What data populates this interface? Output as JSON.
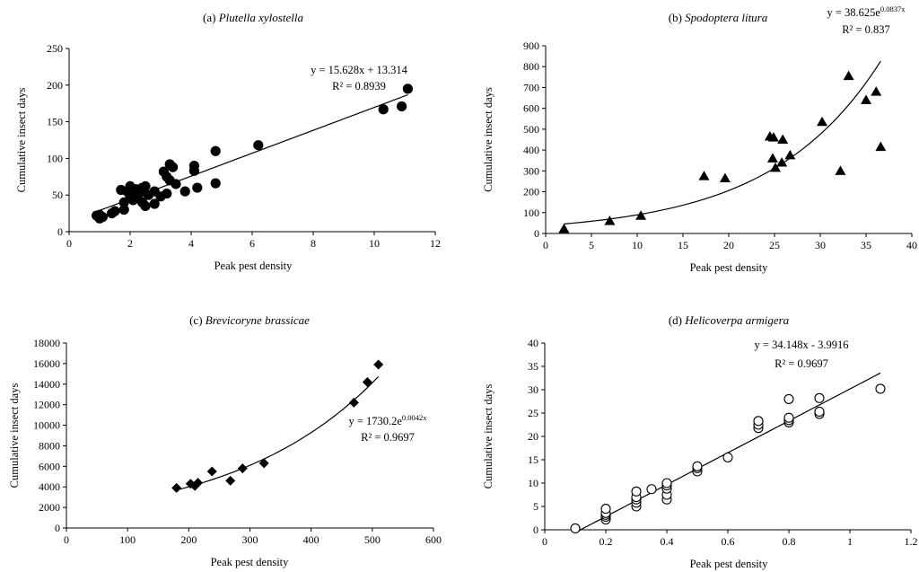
{
  "chart_data": [
    {
      "type": "scatter",
      "panel_label": "(a) ",
      "species": "Plutella xylostella",
      "xlabel": "Peak pest density",
      "ylabel": "Cumulative insect days",
      "xlim": [
        0,
        12
      ],
      "ylim": [
        0,
        250
      ],
      "xticks": [
        "0",
        "2",
        "4",
        "6",
        "8",
        "10",
        "12"
      ],
      "yticks": [
        "0",
        "50",
        "100",
        "150",
        "200",
        "250"
      ],
      "marker": "circle",
      "marker_fill": "#000000",
      "legend_position": "none",
      "grid": false,
      "trendline": {
        "kind": "linear",
        "a": 15.628,
        "b": 13.314
      },
      "equation": {
        "main": "y = 15.628x + 13.314",
        "r2": "R² = 0.8939"
      },
      "x": [
        0.9,
        1.0,
        1.0,
        1.1,
        1.4,
        1.5,
        1.7,
        1.8,
        1.8,
        1.9,
        2.0,
        2.0,
        2.1,
        2.2,
        2.2,
        2.3,
        2.4,
        2.4,
        2.5,
        2.5,
        2.6,
        2.8,
        2.8,
        3.0,
        3.1,
        3.2,
        3.2,
        3.3,
        3.3,
        3.4,
        3.5,
        3.8,
        4.1,
        4.1,
        4.2,
        4.8,
        4.8,
        6.2,
        10.3,
        10.9,
        11.1
      ],
      "y": [
        22,
        18,
        23,
        20,
        25,
        28,
        57,
        30,
        40,
        55,
        48,
        62,
        43,
        50,
        58,
        52,
        40,
        60,
        35,
        62,
        50,
        38,
        55,
        48,
        82,
        52,
        75,
        92,
        70,
        88,
        65,
        55,
        83,
        90,
        60,
        110,
        66,
        118,
        167,
        171,
        195
      ]
    },
    {
      "type": "scatter",
      "panel_label": "(b) ",
      "species": "Spodoptera litura",
      "xlabel": "Peak pest density",
      "ylabel": "Cumulative insect days",
      "xlim": [
        0,
        40
      ],
      "ylim": [
        0,
        900
      ],
      "xticks": [
        "0",
        "5",
        "10",
        "15",
        "20",
        "25",
        "30",
        "35",
        "40"
      ],
      "yticks": [
        "0",
        "100",
        "200",
        "300",
        "400",
        "500",
        "600",
        "700",
        "800",
        "900"
      ],
      "marker": "triangle",
      "marker_fill": "#000000",
      "legend_position": "none",
      "grid": false,
      "trendline": {
        "kind": "exponential",
        "a": 38.625,
        "b": 0.0837
      },
      "equation": {
        "main": "y = 38.625e",
        "exponent": "0.0837x",
        "r2": "R² = 0.837"
      },
      "x": [
        2.0,
        7.0,
        10.4,
        17.3,
        19.6,
        24.5,
        24.9,
        24.8,
        25.1,
        25.8,
        25.9,
        26.7,
        30.2,
        32.2,
        33.1,
        35.0,
        36.1,
        36.6
      ],
      "y": [
        22,
        60,
        85,
        275,
        265,
        465,
        460,
        360,
        315,
        340,
        450,
        375,
        535,
        300,
        755,
        640,
        680,
        415
      ]
    },
    {
      "type": "scatter",
      "panel_label": "(c) ",
      "species": "Brevicoryne brassicae",
      "xlabel": "Peak pest density",
      "ylabel": "Cumulative insect days",
      "xlim": [
        0,
        600
      ],
      "ylim": [
        0,
        18000
      ],
      "xticks": [
        "0",
        "100",
        "200",
        "300",
        "400",
        "500",
        "600"
      ],
      "yticks": [
        "0",
        "2000",
        "4000",
        "6000",
        "8000",
        "10000",
        "12000",
        "14000",
        "16000",
        "18000"
      ],
      "marker": "diamond",
      "marker_fill": "#000000",
      "legend_position": "none",
      "grid": false,
      "trendline": {
        "kind": "exponential",
        "a": 1730.2,
        "b": 0.0042
      },
      "equation": {
        "main": "y = 1730.2e",
        "exponent": "0.0042x",
        "r2": "R² = 0.9697"
      },
      "x": [
        180,
        203,
        210,
        215,
        238,
        268,
        288,
        323,
        470,
        492,
        510
      ],
      "y": [
        3900,
        4300,
        4100,
        4400,
        5500,
        4600,
        5800,
        6300,
        12200,
        14200,
        15900
      ]
    },
    {
      "type": "scatter",
      "panel_label": "(d) ",
      "species": "Helicoverpa armigera",
      "xlabel": "Peak pest density",
      "ylabel": "Cumulative insect days",
      "xlim": [
        0,
        1.2
      ],
      "ylim": [
        0,
        40
      ],
      "xticks": [
        "0",
        "0.2",
        "0.4",
        "0.6",
        "0.8",
        "1",
        "1.2"
      ],
      "yticks": [
        "0",
        "5",
        "10",
        "15",
        "20",
        "25",
        "30",
        "35",
        "40"
      ],
      "marker": "open-circle",
      "marker_fill": "#ffffff",
      "legend_position": "none",
      "grid": false,
      "trendline": {
        "kind": "linear",
        "a": 34.148,
        "b": -3.9916
      },
      "equation": {
        "main": "y = 34.148x - 3.9916",
        "r2": "R² = 0.9697"
      },
      "x": [
        0.1,
        0.2,
        0.2,
        0.2,
        0.2,
        0.2,
        0.3,
        0.3,
        0.3,
        0.3,
        0.3,
        0.35,
        0.4,
        0.4,
        0.4,
        0.4,
        0.4,
        0.5,
        0.5,
        0.5,
        0.6,
        0.7,
        0.7,
        0.7,
        0.8,
        0.8,
        0.8,
        0.8,
        0.9,
        0.9,
        0.9,
        1.1
      ],
      "y": [
        0.3,
        2.2,
        2.8,
        3.2,
        3.6,
        4.5,
        5.0,
        5.8,
        6.5,
        7.0,
        8.2,
        8.7,
        6.5,
        7.5,
        8.8,
        9.5,
        10.0,
        12.5,
        13.2,
        13.6,
        15.5,
        21.8,
        22.5,
        23.3,
        23.0,
        23.5,
        24.0,
        28.0,
        24.8,
        25.3,
        28.2,
        30.2
      ]
    }
  ]
}
